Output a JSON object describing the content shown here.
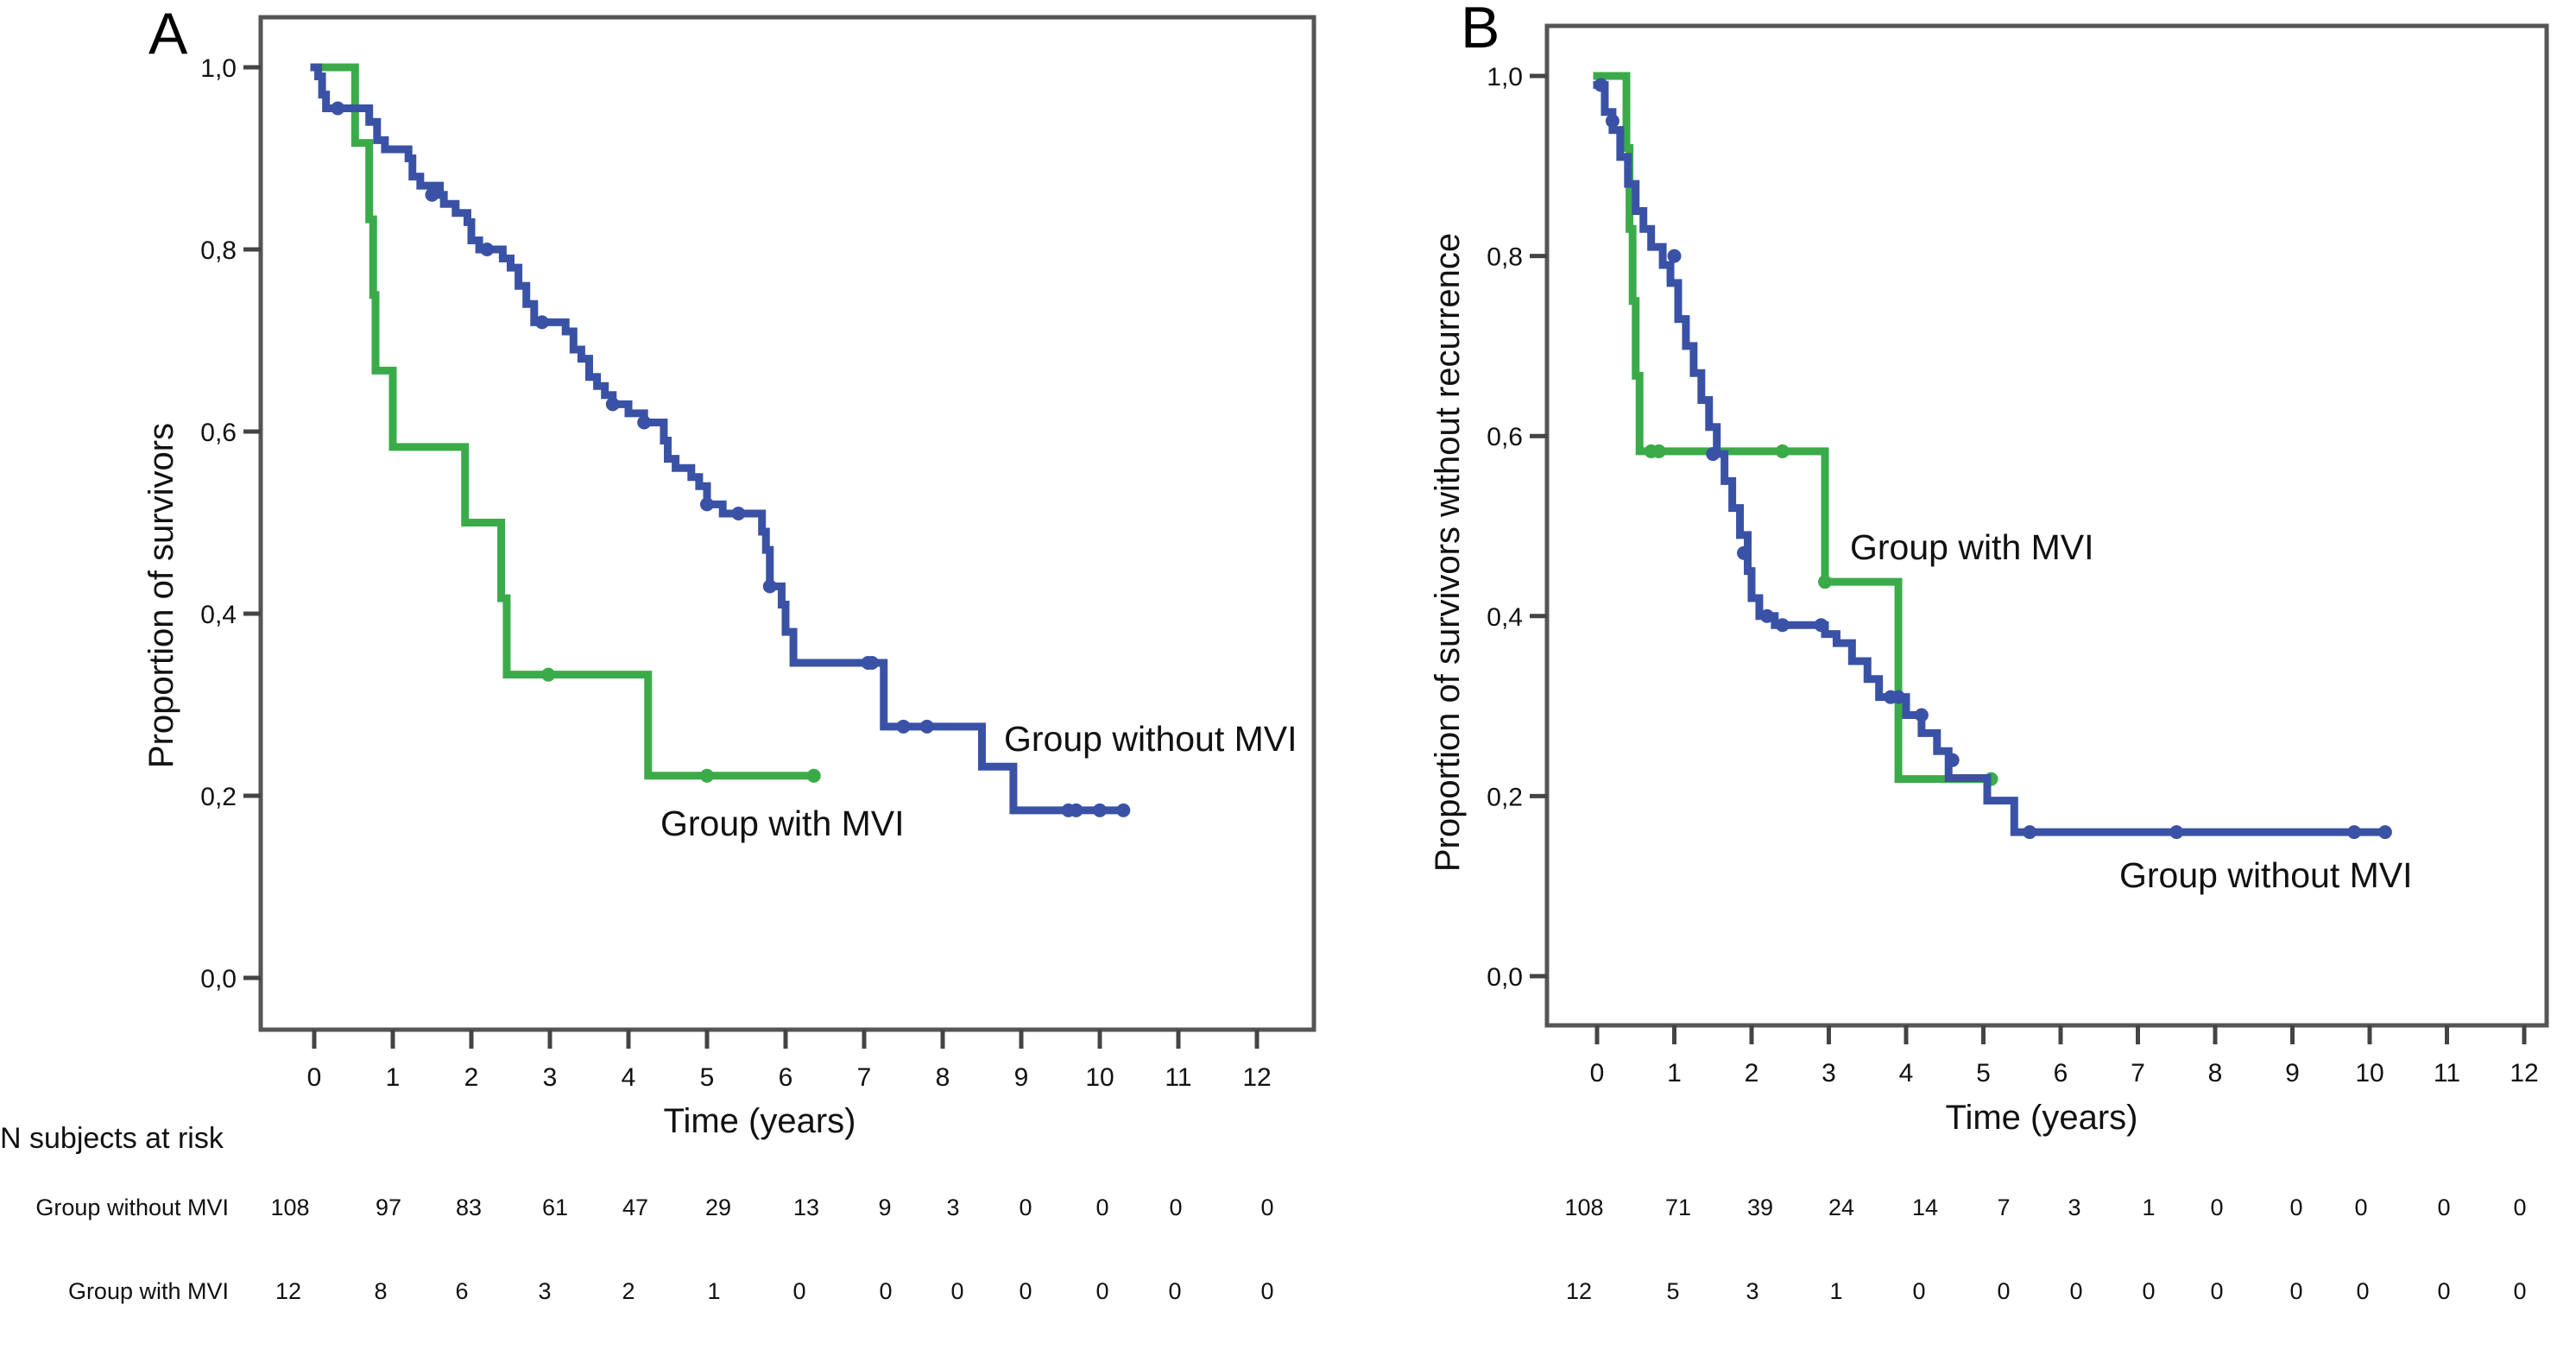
{
  "colors": {
    "without_mvi": "#3a52a6",
    "with_mvi": "#3bab4a"
  },
  "risk_table": {
    "header": "N subjects at risk",
    "row_labels": [
      "Group without MVI",
      "Group with MVI"
    ]
  },
  "chart_data": [
    {
      "panel": "A",
      "type": "line",
      "subtype": "kaplan-meier step",
      "title": "",
      "xlabel": "Time (years)",
      "ylabel": "Proportion of survivors",
      "xlim": [
        0,
        12
      ],
      "ylim": [
        0,
        1
      ],
      "xticks": [
        "0",
        "1",
        "2",
        "3",
        "4",
        "5",
        "6",
        "7",
        "8",
        "9",
        "10",
        "11",
        "12"
      ],
      "yticks": [
        "0,0",
        "0,2",
        "0,4",
        "0,6",
        "0,8",
        "1,0"
      ],
      "ytick_values": [
        0,
        0.2,
        0.4,
        0.6,
        0.8,
        1.0
      ],
      "grid": false,
      "annotations": [
        {
          "text": "Group without MVI",
          "series": "Group without MVI",
          "near": [
            9.0,
            0.27
          ]
        },
        {
          "text": "Group with MVI",
          "series": "Group with MVI",
          "near": [
            4.5,
            0.18
          ]
        }
      ],
      "series": [
        {
          "name": "Group without MVI",
          "color": "#3a52a6",
          "steps": [
            [
              0,
              1.0
            ],
            [
              0.05,
              0.99
            ],
            [
              0.1,
              0.97
            ],
            [
              0.15,
              0.955
            ],
            [
              0.7,
              0.94
            ],
            [
              0.8,
              0.92
            ],
            [
              0.9,
              0.91
            ],
            [
              1.2,
              0.9
            ],
            [
              1.25,
              0.88
            ],
            [
              1.35,
              0.87
            ],
            [
              1.6,
              0.86
            ],
            [
              1.65,
              0.85
            ],
            [
              1.8,
              0.84
            ],
            [
              1.95,
              0.83
            ],
            [
              2.0,
              0.81
            ],
            [
              2.1,
              0.8
            ],
            [
              2.4,
              0.79
            ],
            [
              2.5,
              0.78
            ],
            [
              2.6,
              0.76
            ],
            [
              2.7,
              0.74
            ],
            [
              2.8,
              0.72
            ],
            [
              3.2,
              0.71
            ],
            [
              3.3,
              0.69
            ],
            [
              3.4,
              0.68
            ],
            [
              3.5,
              0.66
            ],
            [
              3.6,
              0.65
            ],
            [
              3.7,
              0.64
            ],
            [
              3.8,
              0.63
            ],
            [
              4.0,
              0.62
            ],
            [
              4.2,
              0.61
            ],
            [
              4.45,
              0.59
            ],
            [
              4.5,
              0.57
            ],
            [
              4.6,
              0.56
            ],
            [
              4.8,
              0.55
            ],
            [
              4.9,
              0.54
            ],
            [
              5.0,
              0.52
            ],
            [
              5.2,
              0.51
            ],
            [
              5.7,
              0.49
            ],
            [
              5.75,
              0.47
            ],
            [
              5.8,
              0.43
            ],
            [
              5.95,
              0.41
            ],
            [
              6.0,
              0.38
            ],
            [
              6.1,
              0.346
            ],
            [
              7.25,
              0.276
            ],
            [
              8.5,
              0.232
            ],
            [
              8.9,
              0.184
            ]
          ],
          "end_time": 10.3,
          "censored": [
            [
              0.3,
              0.955
            ],
            [
              1.5,
              0.86
            ],
            [
              2.2,
              0.8
            ],
            [
              2.9,
              0.72
            ],
            [
              3.8,
              0.63
            ],
            [
              4.2,
              0.61
            ],
            [
              5.0,
              0.52
            ],
            [
              5.4,
              0.51
            ],
            [
              5.8,
              0.43
            ],
            [
              7.05,
              0.346
            ],
            [
              7.1,
              0.346
            ],
            [
              7.5,
              0.276
            ],
            [
              7.8,
              0.276
            ],
            [
              9.6,
              0.184
            ],
            [
              9.7,
              0.184
            ],
            [
              10.0,
              0.184
            ],
            [
              10.3,
              0.184
            ]
          ]
        },
        {
          "name": "Group with MVI",
          "color": "#3bab4a",
          "steps": [
            [
              0,
              1.0
            ],
            [
              0.52,
              0.917
            ],
            [
              0.7,
              0.833
            ],
            [
              0.75,
              0.75
            ],
            [
              0.78,
              0.667
            ],
            [
              1.0,
              0.583
            ],
            [
              1.92,
              0.5
            ],
            [
              2.38,
              0.417
            ],
            [
              2.45,
              0.333
            ],
            [
              4.25,
              0.222
            ]
          ],
          "end_time": 6.36,
          "censored": [
            [
              2.98,
              0.333
            ],
            [
              5.0,
              0.222
            ],
            [
              6.36,
              0.222
            ]
          ]
        }
      ],
      "at_risk": {
        "times": [
          0,
          1,
          2,
          3,
          4,
          5,
          6,
          7,
          8,
          9,
          10,
          11,
          12
        ],
        "Group without MVI": [
          108,
          97,
          83,
          61,
          47,
          29,
          13,
          9,
          3,
          0,
          0,
          0,
          0
        ],
        "Group with MVI": [
          12,
          8,
          6,
          3,
          2,
          1,
          0,
          0,
          0,
          0,
          0,
          0,
          0
        ]
      }
    },
    {
      "panel": "B",
      "type": "line",
      "subtype": "kaplan-meier step",
      "title": "",
      "xlabel": "Time (years)",
      "ylabel": "Proportion of survivors without recurrence",
      "xlim": [
        0,
        12
      ],
      "ylim": [
        0,
        1
      ],
      "xticks": [
        "0",
        "1",
        "2",
        "3",
        "4",
        "5",
        "6",
        "7",
        "8",
        "9",
        "10",
        "11",
        "12"
      ],
      "yticks": [
        "0,0",
        "0,2",
        "0,4",
        "0,6",
        "0,8",
        "1,0"
      ],
      "ytick_values": [
        0,
        0.2,
        0.4,
        0.6,
        0.8,
        1.0
      ],
      "grid": false,
      "annotations": [
        {
          "text": "Group with MVI",
          "series": "Group with MVI",
          "near": [
            3.3,
            0.48
          ]
        },
        {
          "text": "Group without MVI",
          "series": "Group without MVI",
          "near": [
            7.0,
            0.11
          ]
        }
      ],
      "series": [
        {
          "name": "Group without MVI",
          "color": "#3a52a6",
          "steps": [
            [
              0,
              0.99
            ],
            [
              0.1,
              0.96
            ],
            [
              0.2,
              0.94
            ],
            [
              0.3,
              0.91
            ],
            [
              0.4,
              0.88
            ],
            [
              0.5,
              0.85
            ],
            [
              0.6,
              0.83
            ],
            [
              0.7,
              0.81
            ],
            [
              0.85,
              0.79
            ],
            [
              0.95,
              0.77
            ],
            [
              1.05,
              0.73
            ],
            [
              1.15,
              0.7
            ],
            [
              1.25,
              0.67
            ],
            [
              1.35,
              0.64
            ],
            [
              1.45,
              0.61
            ],
            [
              1.55,
              0.58
            ],
            [
              1.65,
              0.55
            ],
            [
              1.75,
              0.52
            ],
            [
              1.85,
              0.49
            ],
            [
              1.95,
              0.45
            ],
            [
              2.0,
              0.42
            ],
            [
              2.1,
              0.4
            ],
            [
              2.3,
              0.39
            ],
            [
              2.95,
              0.38
            ],
            [
              3.1,
              0.37
            ],
            [
              3.3,
              0.35
            ],
            [
              3.5,
              0.33
            ],
            [
              3.65,
              0.31
            ],
            [
              4.0,
              0.29
            ],
            [
              4.2,
              0.27
            ],
            [
              4.4,
              0.25
            ],
            [
              4.55,
              0.22
            ],
            [
              4.6,
              0.22
            ],
            [
              5.05,
              0.195
            ],
            [
              5.4,
              0.16
            ]
          ],
          "end_time": 10.2,
          "censored": [
            [
              0.05,
              0.99
            ],
            [
              0.2,
              0.95
            ],
            [
              1.0,
              0.8
            ],
            [
              1.5,
              0.58
            ],
            [
              1.9,
              0.47
            ],
            [
              2.2,
              0.4
            ],
            [
              2.4,
              0.39
            ],
            [
              2.9,
              0.39
            ],
            [
              3.8,
              0.31
            ],
            [
              3.9,
              0.31
            ],
            [
              4.2,
              0.29
            ],
            [
              4.6,
              0.24
            ],
            [
              5.6,
              0.16
            ],
            [
              7.5,
              0.16
            ],
            [
              9.8,
              0.16
            ],
            [
              10.2,
              0.16
            ]
          ]
        },
        {
          "name": "Group with MVI",
          "color": "#3bab4a",
          "steps": [
            [
              0,
              1.0
            ],
            [
              0.38,
              0.92
            ],
            [
              0.42,
              0.83
            ],
            [
              0.46,
              0.75
            ],
            [
              0.5,
              0.667
            ],
            [
              0.55,
              0.583
            ],
            [
              2.95,
              0.438
            ],
            [
              3.9,
              0.219
            ]
          ],
          "end_time": 5.1,
          "censored": [
            [
              0.7,
              0.583
            ],
            [
              0.8,
              0.583
            ],
            [
              2.4,
              0.583
            ],
            [
              2.95,
              0.438
            ],
            [
              5.1,
              0.219
            ]
          ]
        }
      ],
      "at_risk": {
        "times": [
          0,
          1,
          2,
          3,
          4,
          5,
          6,
          7,
          8,
          9,
          10,
          11,
          12
        ],
        "Group without MVI": [
          108,
          71,
          39,
          24,
          14,
          7,
          3,
          1,
          0,
          0,
          0,
          0,
          0
        ],
        "Group with MVI": [
          12,
          5,
          3,
          1,
          0,
          0,
          0,
          0,
          0,
          0,
          0,
          0,
          0
        ]
      }
    }
  ]
}
